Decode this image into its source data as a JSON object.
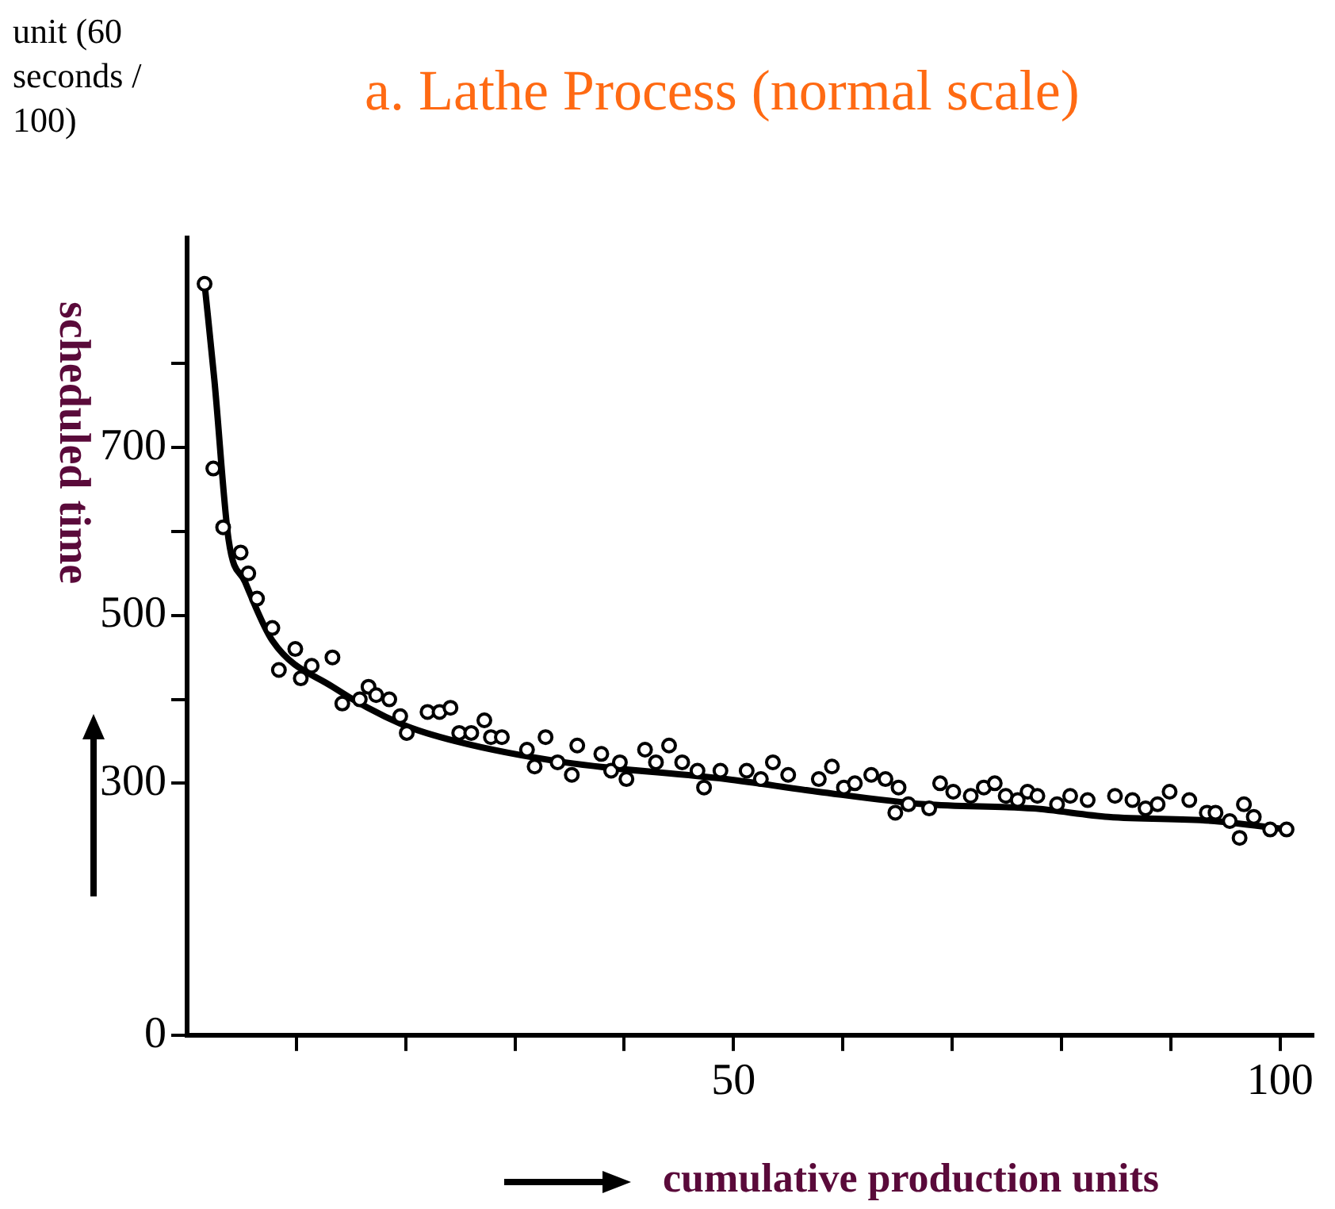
{
  "chart_data": {
    "type": "scatter",
    "title": "a. Lathe Process (normal scale)",
    "xlabel": "cumulative production units",
    "ylabel": "scheduled time",
    "annotations": [
      "unit (60 seconds / 100)"
    ],
    "xlim": [
      0,
      103
    ],
    "xticks": [
      {
        "value": 10,
        "label": null
      },
      {
        "value": 20,
        "label": null
      },
      {
        "value": 30,
        "label": null
      },
      {
        "value": 40,
        "label": null
      },
      50,
      {
        "value": 60,
        "label": null
      },
      {
        "value": 70,
        "label": null
      },
      {
        "value": 80,
        "label": null
      },
      {
        "value": 90,
        "label": null
      },
      100
    ],
    "ylim": [
      0,
      950
    ],
    "yticks": [
      0,
      300,
      {
        "value": 400,
        "label": null
      },
      500,
      {
        "value": 600,
        "label": null
      },
      700,
      {
        "value": 800,
        "label": null
      }
    ],
    "grid": false,
    "legend": false,
    "line_style": "solid",
    "series": [
      {
        "color": "#000000",
        "marker": "circle",
        "x": [
          1.6,
          2.4,
          3.3,
          4.9,
          5.6,
          6.4,
          7.8,
          9.9,
          8.4,
          11.4,
          10.4,
          13.3,
          14.2,
          15.8,
          16.6,
          17.3,
          18.5,
          19.5,
          20.1,
          22,
          23.1,
          24.1,
          24.9,
          26,
          27.2,
          27.8,
          28.8,
          31.1,
          32.8,
          31.8,
          33.9,
          35.2,
          35.7,
          37.9,
          38.8,
          39.6,
          40.2,
          41.9,
          44.1,
          42.9,
          45.3,
          46.7,
          47.3,
          48.8,
          51.2,
          52.5,
          53.6,
          55,
          57.8,
          59,
          60.1,
          61.1,
          62.6,
          63.9,
          65.1,
          64.8,
          66,
          67.9,
          68.9,
          70.1,
          71.7,
          72.9,
          73.9,
          74.9,
          76,
          76.9,
          77.8,
          79.6,
          80.8,
          82.4,
          84.9,
          86.5,
          87.7,
          88.8,
          89.9,
          91.7,
          93.3,
          94.1,
          95.4,
          96.7,
          97.6,
          96.3,
          99.1,
          100.6
        ],
        "values": [
          895,
          675,
          605,
          575,
          550,
          520,
          485,
          460,
          435,
          440,
          425,
          450,
          395,
          400,
          415,
          405,
          400,
          380,
          360,
          385,
          385,
          390,
          360,
          360,
          375,
          355,
          355,
          340,
          355,
          320,
          325,
          310,
          345,
          335,
          315,
          325,
          305,
          340,
          345,
          325,
          325,
          315,
          295,
          315,
          315,
          305,
          325,
          310,
          305,
          320,
          295,
          300,
          310,
          305,
          295,
          265,
          275,
          270,
          300,
          290,
          285,
          295,
          300,
          285,
          280,
          290,
          285,
          275,
          285,
          280,
          285,
          280,
          270,
          275,
          290,
          280,
          265,
          265,
          255,
          275,
          260,
          235,
          245,
          245
        ]
      },
      {
        "type": "line",
        "marker": "none",
        "color": "#000000",
        "x": [
          1.6,
          2.5,
          3.8,
          5.3,
          7.8,
          13.3,
          19.7,
          24.6,
          34.5,
          49.3,
          57.7,
          67.5,
          77.4,
          84.3,
          94,
          100.6
        ],
        "values": [
          895,
          780,
          590,
          540,
          470,
          415,
          370,
          350,
          325,
          305,
          290,
          275,
          270,
          260,
          255,
          245
        ]
      }
    ]
  }
}
